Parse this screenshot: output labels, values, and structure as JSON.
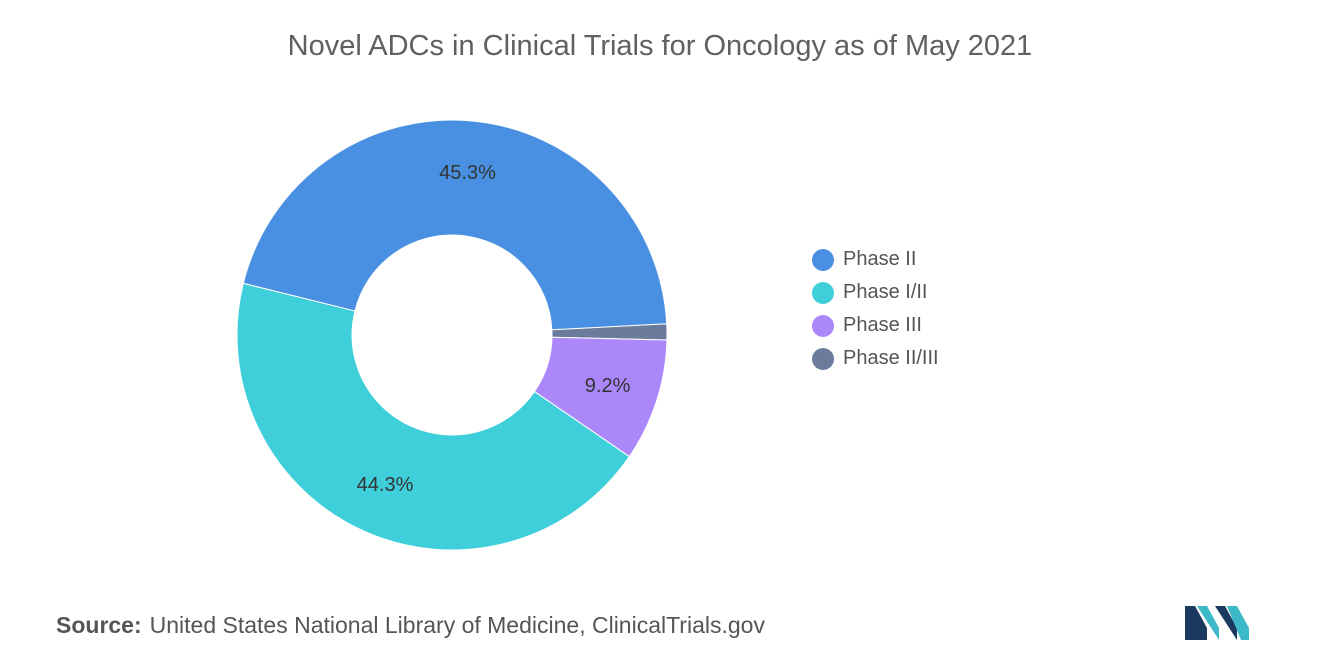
{
  "title": "Novel ADCs in Clinical Trials for Oncology as of May 2021",
  "chart_data": {
    "type": "pie",
    "donut": true,
    "title": "Novel ADCs in Clinical Trials for Oncology as of May 2021",
    "categories": [
      "Phase II",
      "Phase I/II",
      "Phase III",
      "Phase II/III"
    ],
    "values": [
      45.3,
      44.3,
      9.2,
      1.2
    ],
    "labels": [
      "45.3%",
      "44.3%",
      "9.2%",
      ""
    ],
    "colors": [
      "#4a90e2",
      "#3fcfda",
      "#ac87fa",
      "#6a7b9c"
    ],
    "legend_position": "right"
  },
  "source": {
    "label": "Source:",
    "text": "United States National Library of Medicine, ClinicalTrials.gov"
  },
  "logo": {
    "icon": "mordor-logo-icon",
    "colors": [
      "#1b3a5f",
      "#3cb8c8"
    ]
  }
}
